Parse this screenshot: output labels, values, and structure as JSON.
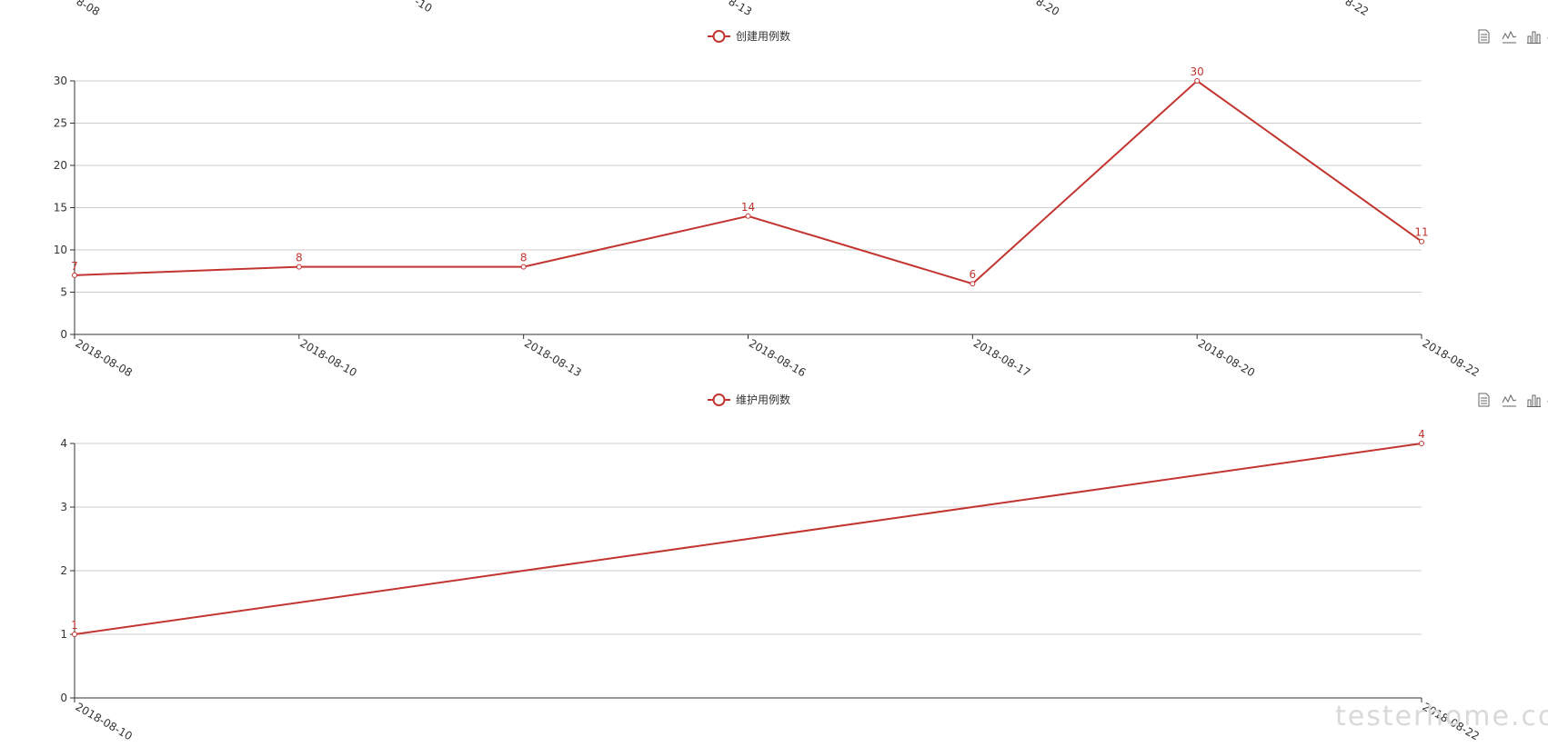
{
  "colors": {
    "series": "#c23531",
    "axis": "#333333",
    "grid": "#cccccc",
    "watermark": "#d4d4d4"
  },
  "top_clipped_labels": [
    "8-08",
    "-10",
    "8-13",
    "8-20",
    "8-22"
  ],
  "toolbox_icons": [
    "data-view-icon",
    "line-chart-icon",
    "bar-chart-icon",
    "restore-icon"
  ],
  "watermark": "testerhome.com",
  "chart_data": [
    {
      "type": "line",
      "legend": "创建用例数",
      "categories": [
        "2018-08-08",
        "2018-08-10",
        "2018-08-13",
        "2018-08-16",
        "2018-08-17",
        "2018-08-20",
        "2018-08-22"
      ],
      "series": [
        {
          "name": "创建用例数",
          "values": [
            7,
            8,
            8,
            14,
            6,
            30,
            11
          ]
        }
      ],
      "yticks": [
        0,
        5,
        10,
        15,
        20,
        25,
        30
      ],
      "ylim": [
        0,
        30
      ],
      "grid": true,
      "legend_position": "top-center"
    },
    {
      "type": "line",
      "legend": "维护用例数",
      "categories": [
        "2018-08-10",
        "2018-08-22"
      ],
      "series": [
        {
          "name": "维护用例数",
          "values": [
            1,
            4
          ]
        }
      ],
      "yticks": [
        0,
        1,
        2,
        3,
        4
      ],
      "ylim": [
        0,
        4
      ],
      "grid": true,
      "legend_position": "top-center"
    }
  ]
}
